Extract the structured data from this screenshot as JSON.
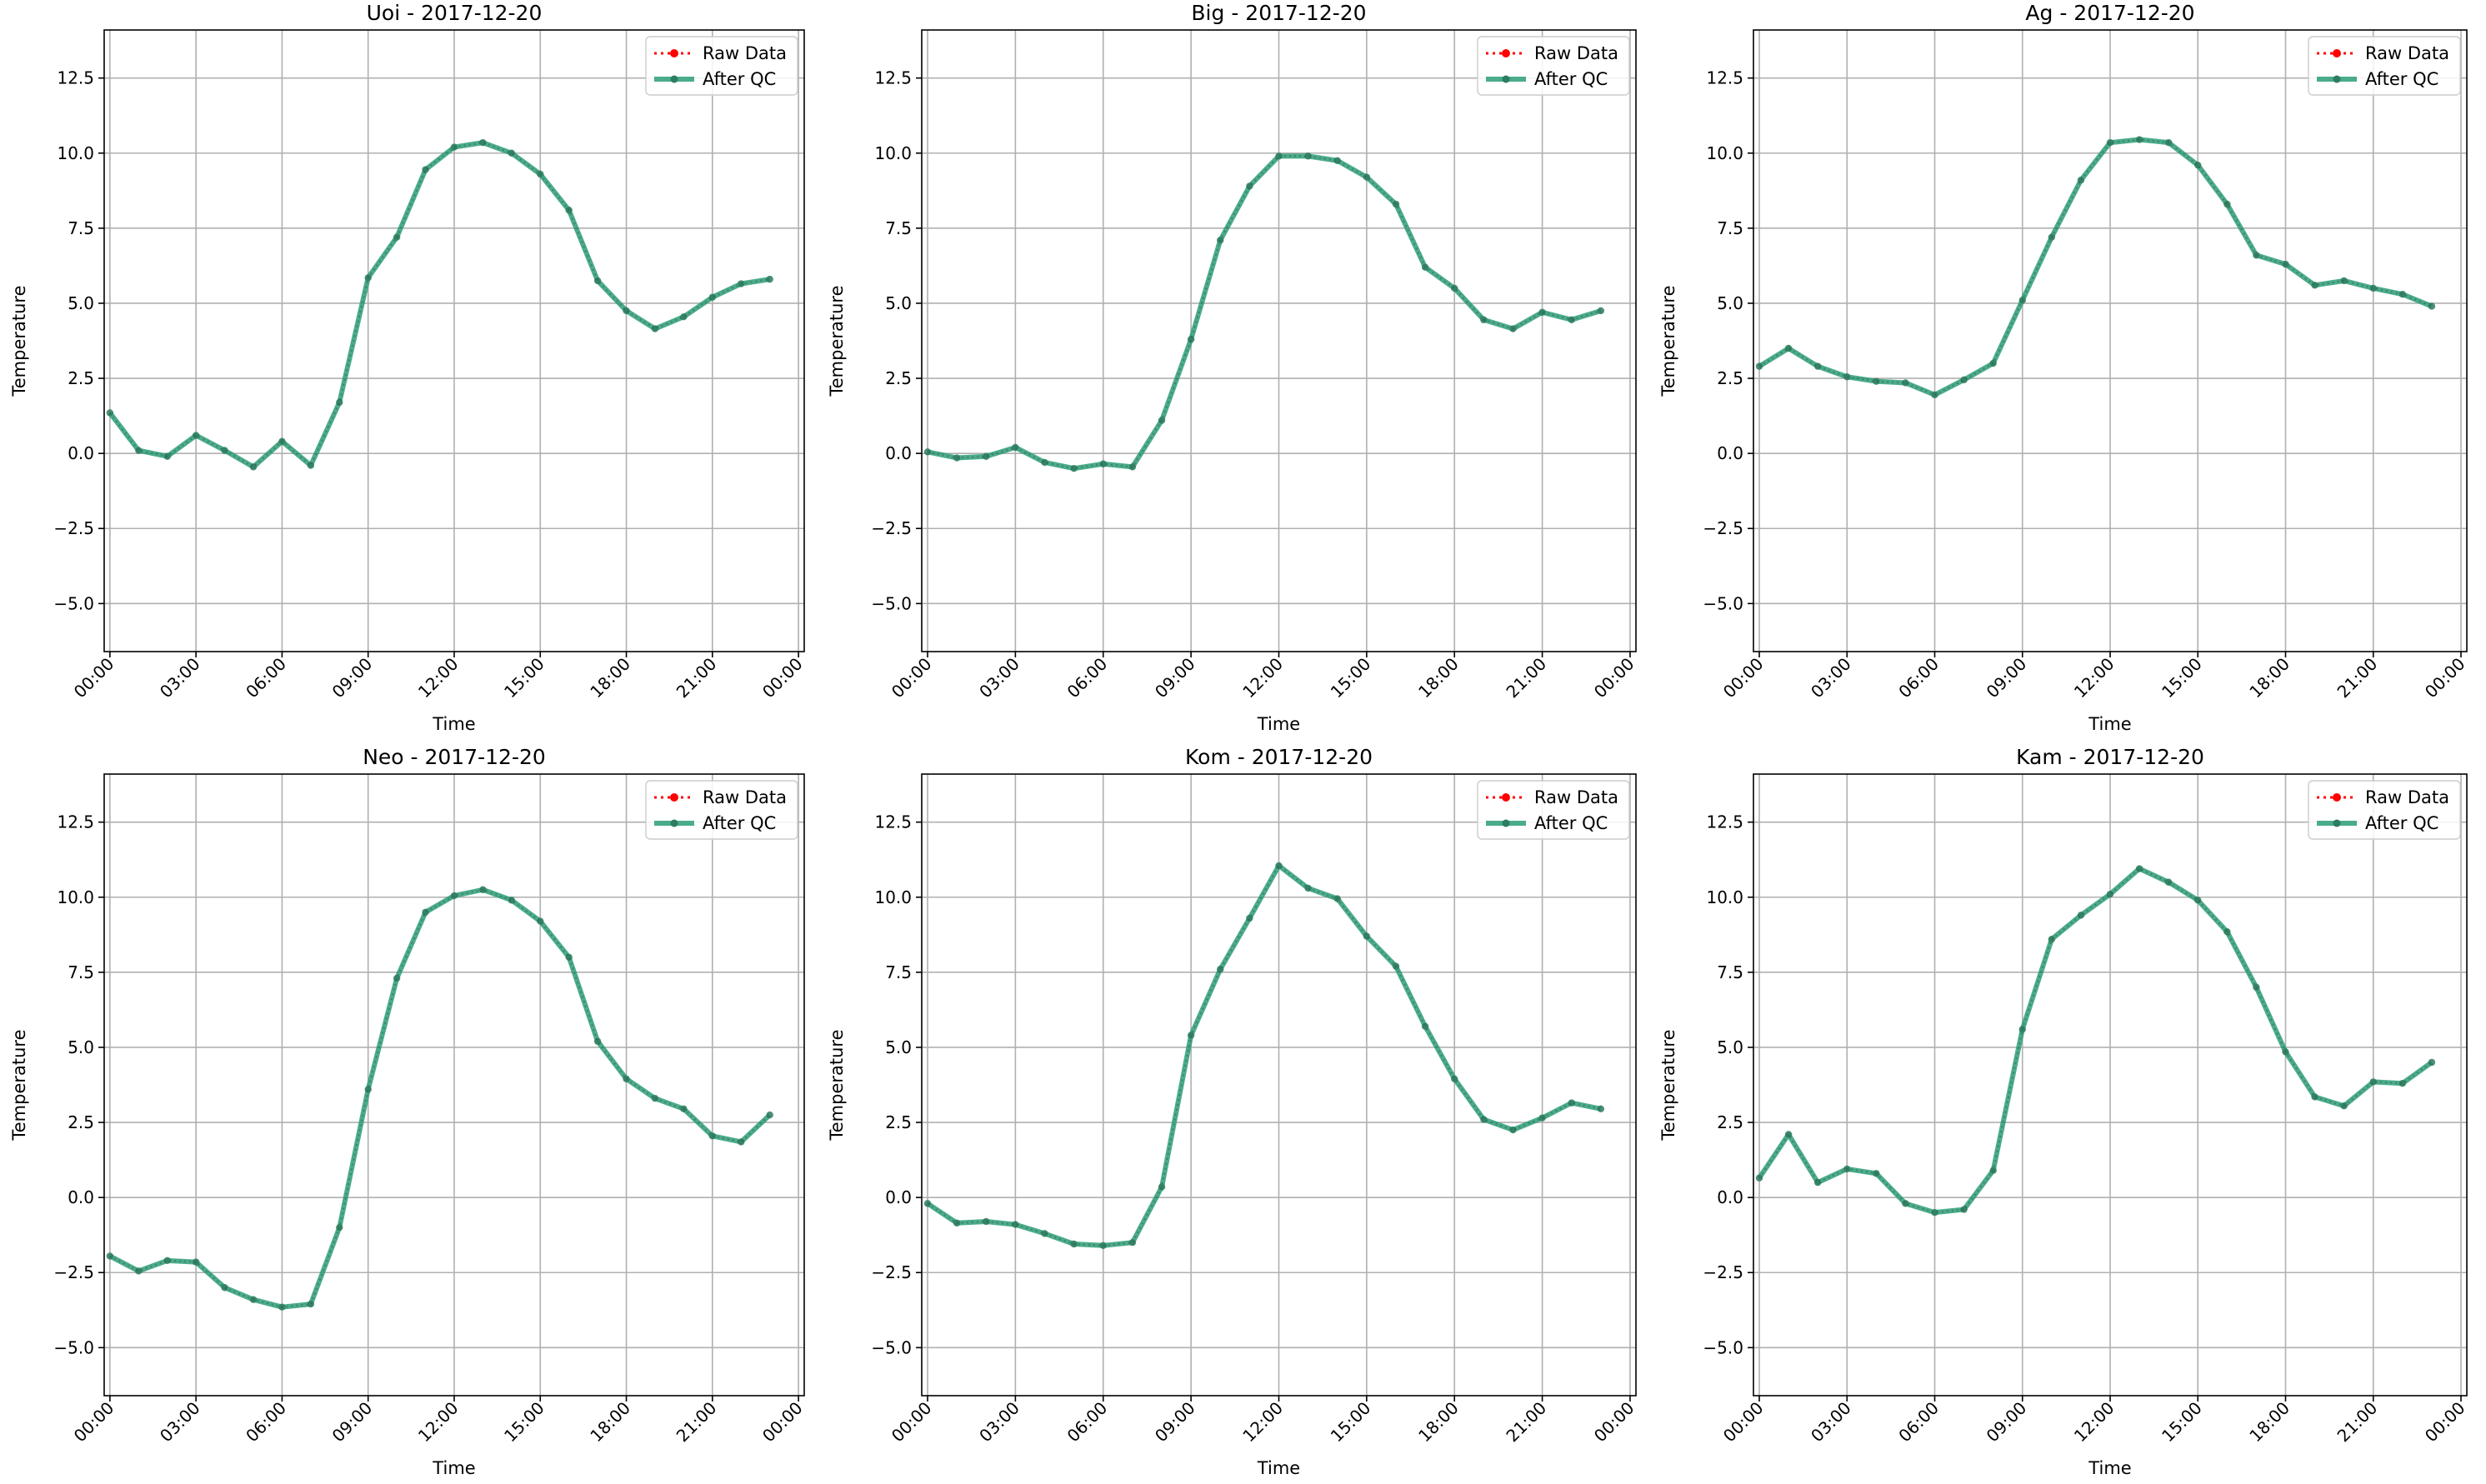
{
  "figure": {
    "series_colors": {
      "raw": "#ff0000",
      "qc": "#2a9d76"
    }
  },
  "chart_data": [
    {
      "type": "line",
      "title": "Uoi - 2017-12-20",
      "xlabel": "Time",
      "ylabel": "Temperature",
      "xlim_hours": [
        -0.2,
        24.2
      ],
      "ylim": [
        -6.6,
        14.1
      ],
      "yticks": [
        -5.0,
        -2.5,
        0.0,
        2.5,
        5.0,
        7.5,
        10.0,
        12.5
      ],
      "ytick_labels": [
        "−5.0",
        "−2.5",
        "0.0",
        "2.5",
        "5.0",
        "7.5",
        "10.0",
        "12.5"
      ],
      "xticks_hours": [
        0,
        3,
        6,
        9,
        12,
        15,
        18,
        21,
        24
      ],
      "xtick_labels": [
        "00:00",
        "03:00",
        "06:00",
        "09:00",
        "12:00",
        "15:00",
        "18:00",
        "21:00",
        "00:00"
      ],
      "grid": true,
      "legend": {
        "placement": "top-right",
        "entries": [
          "Raw Data",
          "After QC"
        ]
      },
      "x_hours": [
        0,
        1,
        2,
        3,
        4,
        5,
        6,
        7,
        8,
        9,
        10,
        11,
        12,
        13,
        14,
        15,
        16,
        17,
        18,
        19,
        20,
        21,
        22,
        23
      ],
      "series": [
        {
          "name": "Raw Data",
          "values": [
            1.35,
            0.1,
            -0.1,
            0.6,
            0.1,
            -0.45,
            0.4,
            -0.4,
            1.7,
            5.85,
            7.2,
            9.45,
            10.2,
            10.35,
            10.0,
            9.3,
            8.1,
            5.75,
            4.75,
            4.15,
            4.55,
            5.2,
            5.65,
            5.8
          ]
        },
        {
          "name": "After QC",
          "values": [
            1.35,
            0.1,
            -0.1,
            0.6,
            0.1,
            -0.45,
            0.4,
            -0.4,
            1.7,
            5.85,
            7.2,
            9.45,
            10.2,
            10.35,
            10.0,
            9.3,
            8.1,
            5.75,
            4.75,
            4.15,
            4.55,
            5.2,
            5.65,
            5.8
          ]
        }
      ]
    },
    {
      "type": "line",
      "title": "Big - 2017-12-20",
      "xlabel": "Time",
      "ylabel": "Temperature",
      "xlim_hours": [
        -0.2,
        24.2
      ],
      "ylim": [
        -6.6,
        14.1
      ],
      "yticks": [
        -5.0,
        -2.5,
        0.0,
        2.5,
        5.0,
        7.5,
        10.0,
        12.5
      ],
      "ytick_labels": [
        "−5.0",
        "−2.5",
        "0.0",
        "2.5",
        "5.0",
        "7.5",
        "10.0",
        "12.5"
      ],
      "xticks_hours": [
        0,
        3,
        6,
        9,
        12,
        15,
        18,
        21,
        24
      ],
      "xtick_labels": [
        "00:00",
        "03:00",
        "06:00",
        "09:00",
        "12:00",
        "15:00",
        "18:00",
        "21:00",
        "00:00"
      ],
      "grid": true,
      "legend": {
        "placement": "top-right",
        "entries": [
          "Raw Data",
          "After QC"
        ]
      },
      "x_hours": [
        0,
        1,
        2,
        3,
        4,
        5,
        6,
        7,
        8,
        9,
        10,
        11,
        12,
        13,
        14,
        15,
        16,
        17,
        18,
        19,
        20,
        21,
        22,
        23
      ],
      "series": [
        {
          "name": "Raw Data",
          "values": [
            0.05,
            -0.15,
            -0.1,
            0.2,
            -0.3,
            -0.5,
            -0.35,
            -0.45,
            1.1,
            3.8,
            7.1,
            8.9,
            9.9,
            9.9,
            9.75,
            9.2,
            8.3,
            6.2,
            5.5,
            4.45,
            4.15,
            4.7,
            4.45,
            4.75
          ]
        },
        {
          "name": "After QC",
          "values": [
            0.05,
            -0.15,
            -0.1,
            0.2,
            -0.3,
            -0.5,
            -0.35,
            -0.45,
            1.1,
            3.8,
            7.1,
            8.9,
            9.9,
            9.9,
            9.75,
            9.2,
            8.3,
            6.2,
            5.5,
            4.45,
            4.15,
            4.7,
            4.45,
            4.75
          ]
        }
      ]
    },
    {
      "type": "line",
      "title": "Ag - 2017-12-20",
      "xlabel": "Time",
      "ylabel": "Temperature",
      "xlim_hours": [
        -0.2,
        24.2
      ],
      "ylim": [
        -6.6,
        14.1
      ],
      "yticks": [
        -5.0,
        -2.5,
        0.0,
        2.5,
        5.0,
        7.5,
        10.0,
        12.5
      ],
      "ytick_labels": [
        "−5.0",
        "−2.5",
        "0.0",
        "2.5",
        "5.0",
        "7.5",
        "10.0",
        "12.5"
      ],
      "xticks_hours": [
        0,
        3,
        6,
        9,
        12,
        15,
        18,
        21,
        24
      ],
      "xtick_labels": [
        "00:00",
        "03:00",
        "06:00",
        "09:00",
        "12:00",
        "15:00",
        "18:00",
        "21:00",
        "00:00"
      ],
      "grid": true,
      "legend": {
        "placement": "top-right",
        "entries": [
          "Raw Data",
          "After QC"
        ]
      },
      "x_hours": [
        0,
        1,
        2,
        3,
        4,
        5,
        6,
        7,
        8,
        9,
        10,
        11,
        12,
        13,
        14,
        15,
        16,
        17,
        18,
        19,
        20,
        21,
        22,
        23
      ],
      "series": [
        {
          "name": "Raw Data",
          "values": [
            2.9,
            3.5,
            2.9,
            2.55,
            2.4,
            2.35,
            1.95,
            2.45,
            3.0,
            5.1,
            7.2,
            9.1,
            10.35,
            10.45,
            10.35,
            9.6,
            8.3,
            6.6,
            6.3,
            5.6,
            5.75,
            5.5,
            5.3,
            4.9
          ]
        },
        {
          "name": "After QC",
          "values": [
            2.9,
            3.5,
            2.9,
            2.55,
            2.4,
            2.35,
            1.95,
            2.45,
            3.0,
            5.1,
            7.2,
            9.1,
            10.35,
            10.45,
            10.35,
            9.6,
            8.3,
            6.6,
            6.3,
            5.6,
            5.75,
            5.5,
            5.3,
            4.9
          ]
        }
      ]
    },
    {
      "type": "line",
      "title": "Neo - 2017-12-20",
      "xlabel": "Time",
      "ylabel": "Temperature",
      "xlim_hours": [
        -0.2,
        24.2
      ],
      "ylim": [
        -6.6,
        14.1
      ],
      "yticks": [
        -5.0,
        -2.5,
        0.0,
        2.5,
        5.0,
        7.5,
        10.0,
        12.5
      ],
      "ytick_labels": [
        "−5.0",
        "−2.5",
        "0.0",
        "2.5",
        "5.0",
        "7.5",
        "10.0",
        "12.5"
      ],
      "xticks_hours": [
        0,
        3,
        6,
        9,
        12,
        15,
        18,
        21,
        24
      ],
      "xtick_labels": [
        "00:00",
        "03:00",
        "06:00",
        "09:00",
        "12:00",
        "15:00",
        "18:00",
        "21:00",
        "00:00"
      ],
      "grid": true,
      "legend": {
        "placement": "top-right",
        "entries": [
          "Raw Data",
          "After QC"
        ]
      },
      "x_hours": [
        0,
        1,
        2,
        3,
        4,
        5,
        6,
        7,
        8,
        9,
        10,
        11,
        12,
        13,
        14,
        15,
        16,
        17,
        18,
        19,
        20,
        21,
        22,
        23
      ],
      "series": [
        {
          "name": "Raw Data",
          "values": [
            -1.95,
            -2.45,
            -2.1,
            -2.15,
            -3.0,
            -3.4,
            -3.65,
            -3.55,
            -1.0,
            3.6,
            7.3,
            9.5,
            10.05,
            10.25,
            9.9,
            9.2,
            8.0,
            5.2,
            3.95,
            3.3,
            2.95,
            2.05,
            1.85,
            2.75
          ]
        },
        {
          "name": "After QC",
          "values": [
            -1.95,
            -2.45,
            -2.1,
            -2.15,
            -3.0,
            -3.4,
            -3.65,
            -3.55,
            -1.0,
            3.6,
            7.3,
            9.5,
            10.05,
            10.25,
            9.9,
            9.2,
            8.0,
            5.2,
            3.95,
            3.3,
            2.95,
            2.05,
            1.85,
            2.75
          ]
        }
      ]
    },
    {
      "type": "line",
      "title": "Kom - 2017-12-20",
      "xlabel": "Time",
      "ylabel": "Temperature",
      "xlim_hours": [
        -0.2,
        24.2
      ],
      "ylim": [
        -6.6,
        14.1
      ],
      "yticks": [
        -5.0,
        -2.5,
        0.0,
        2.5,
        5.0,
        7.5,
        10.0,
        12.5
      ],
      "ytick_labels": [
        "−5.0",
        "−2.5",
        "0.0",
        "2.5",
        "5.0",
        "7.5",
        "10.0",
        "12.5"
      ],
      "xticks_hours": [
        0,
        3,
        6,
        9,
        12,
        15,
        18,
        21,
        24
      ],
      "xtick_labels": [
        "00:00",
        "03:00",
        "06:00",
        "09:00",
        "12:00",
        "15:00",
        "18:00",
        "21:00",
        "00:00"
      ],
      "grid": true,
      "legend": {
        "placement": "top-right",
        "entries": [
          "Raw Data",
          "After QC"
        ]
      },
      "x_hours": [
        0,
        1,
        2,
        3,
        4,
        5,
        6,
        7,
        8,
        9,
        10,
        11,
        12,
        13,
        14,
        15,
        16,
        17,
        18,
        19,
        20,
        21,
        22,
        23
      ],
      "series": [
        {
          "name": "Raw Data",
          "values": [
            -0.2,
            -0.85,
            -0.8,
            -0.9,
            -1.2,
            -1.55,
            -1.6,
            -1.5,
            0.35,
            5.4,
            7.6,
            9.3,
            11.05,
            10.3,
            9.95,
            8.7,
            7.7,
            5.7,
            3.95,
            2.6,
            2.25,
            2.65,
            3.15,
            2.95
          ]
        },
        {
          "name": "After QC",
          "values": [
            -0.2,
            -0.85,
            -0.8,
            -0.9,
            -1.2,
            -1.55,
            -1.6,
            -1.5,
            0.35,
            5.4,
            7.6,
            9.3,
            11.05,
            10.3,
            9.95,
            8.7,
            7.7,
            5.7,
            3.95,
            2.6,
            2.25,
            2.65,
            3.15,
            2.95
          ]
        }
      ]
    },
    {
      "type": "line",
      "title": "Kam - 2017-12-20",
      "xlabel": "Time",
      "ylabel": "Temperature",
      "xlim_hours": [
        -0.2,
        24.2
      ],
      "ylim": [
        -6.6,
        14.1
      ],
      "yticks": [
        -5.0,
        -2.5,
        0.0,
        2.5,
        5.0,
        7.5,
        10.0,
        12.5
      ],
      "ytick_labels": [
        "−5.0",
        "−2.5",
        "0.0",
        "2.5",
        "5.0",
        "7.5",
        "10.0",
        "12.5"
      ],
      "xticks_hours": [
        0,
        3,
        6,
        9,
        12,
        15,
        18,
        21,
        24
      ],
      "xtick_labels": [
        "00:00",
        "03:00",
        "06:00",
        "09:00",
        "12:00",
        "15:00",
        "18:00",
        "21:00",
        "00:00"
      ],
      "grid": true,
      "legend": {
        "placement": "top-right",
        "entries": [
          "Raw Data",
          "After QC"
        ]
      },
      "x_hours": [
        0,
        1,
        2,
        3,
        4,
        5,
        6,
        7,
        8,
        9,
        10,
        11,
        12,
        13,
        14,
        15,
        16,
        17,
        18,
        19,
        20,
        21,
        22,
        23
      ],
      "series": [
        {
          "name": "Raw Data",
          "values": [
            0.65,
            2.1,
            0.5,
            0.95,
            0.8,
            -0.2,
            -0.5,
            -0.4,
            0.9,
            5.6,
            8.6,
            9.4,
            10.1,
            10.95,
            10.5,
            9.9,
            8.85,
            7.0,
            4.85,
            3.35,
            3.05,
            3.85,
            3.8,
            4.5
          ]
        },
        {
          "name": "After QC",
          "values": [
            0.65,
            2.1,
            0.5,
            0.95,
            0.8,
            -0.2,
            -0.5,
            -0.4,
            0.9,
            5.6,
            8.6,
            9.4,
            10.1,
            10.95,
            10.5,
            9.9,
            8.85,
            7.0,
            4.85,
            3.35,
            3.05,
            3.85,
            3.8,
            4.5
          ]
        }
      ]
    }
  ]
}
